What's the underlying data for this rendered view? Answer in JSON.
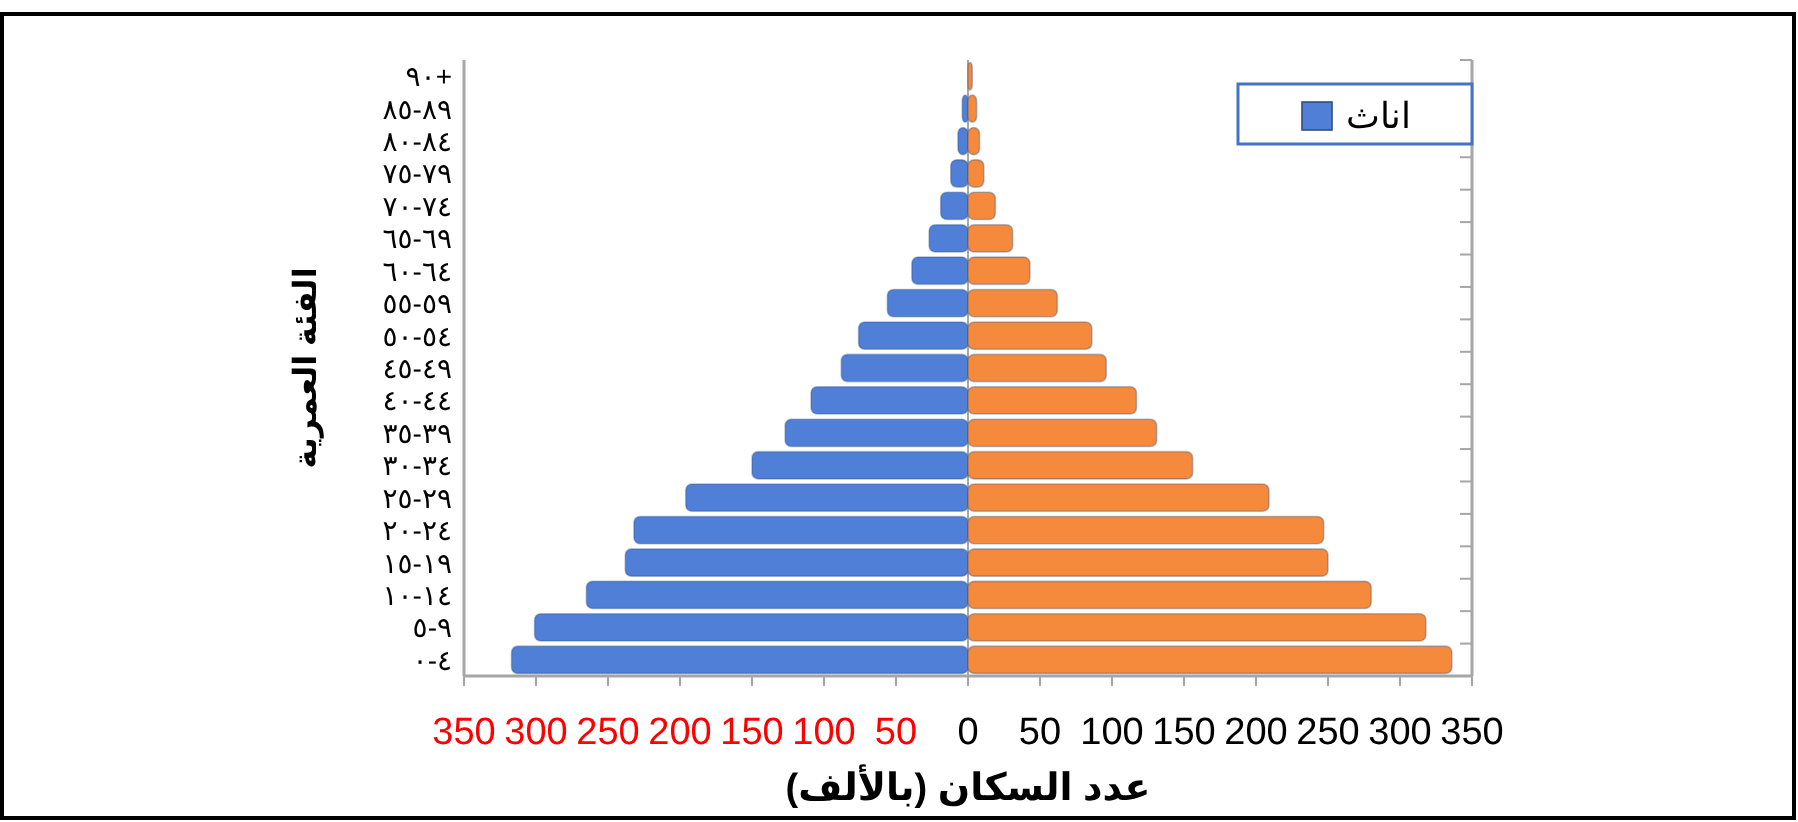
{
  "chart_data": {
    "type": "bar",
    "orientation": "horizontal",
    "xlabel": "عدد السكان (بالألف)",
    "ylabel": "الفئة العمرية",
    "categories": [
      "٩٠+",
      "٨٥-٨٩",
      "٨٠-٨٤",
      "٧٥-٧٩",
      "٧٠-٧٤",
      "٦٥-٦٩",
      "٦٠-٦٤",
      "٥٥-٥٩",
      "٥٠-٥٤",
      "٤٥-٤٩",
      "٤٠-٤٤",
      "٣٥-٣٩",
      "٣٠-٣٤",
      "٢٥-٢٩",
      "٢٠-٢٤",
      "١٥-١٩",
      "١٠-١٤",
      "٥-٩",
      "٠-٤"
    ],
    "series": [
      {
        "name": "اناث",
        "color": "#4f7fd6",
        "values": [
          null,
          -4,
          -7,
          -12,
          -19,
          -27,
          -39,
          -56,
          -76,
          -88,
          -109,
          -127,
          -150,
          -196,
          -232,
          -238,
          -265,
          -301,
          -317
        ]
      },
      {
        "color": "#f58a3c",
        "values": [
          3,
          6,
          8,
          11,
          19,
          31,
          43,
          62,
          86,
          96,
          117,
          131,
          156,
          209,
          247,
          250,
          280,
          318,
          336
        ]
      }
    ],
    "xlim": [
      -350,
      350
    ],
    "xticks": [
      {
        "value": -350,
        "label": "350"
      },
      {
        "value": -300,
        "label": "300"
      },
      {
        "value": -250,
        "label": "250"
      },
      {
        "value": -200,
        "label": "200"
      },
      {
        "value": -150,
        "label": "150"
      },
      {
        "value": -100,
        "label": "100"
      },
      {
        "value": -50,
        "label": "50"
      },
      0,
      50,
      100,
      150,
      200,
      250,
      300,
      350
    ],
    "legend": "top right",
    "stacked": true
  }
}
